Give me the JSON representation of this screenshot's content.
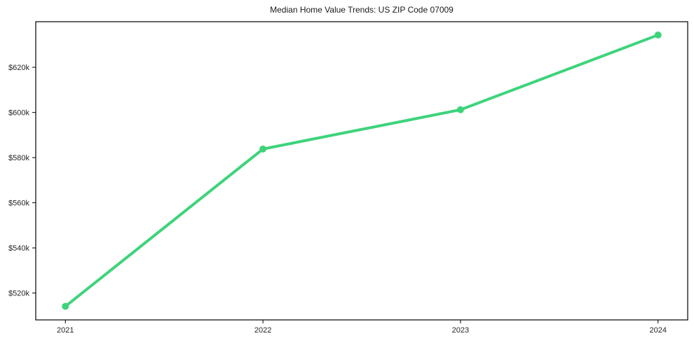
{
  "chart_data": {
    "type": "line",
    "title": "Median Home Value Trends: US ZIP Code 07009",
    "xlabel": "",
    "ylabel": "",
    "x": [
      2021,
      2022,
      2023,
      2024
    ],
    "values": [
      514100,
      583800,
      601200,
      634300
    ],
    "series_name": "Median Home Value",
    "x_ticks": [
      {
        "value": 2021,
        "label": "2021"
      },
      {
        "value": 2022,
        "label": "2022"
      },
      {
        "value": 2023,
        "label": "2023"
      },
      {
        "value": 2024,
        "label": "2024"
      }
    ],
    "y_ticks": [
      {
        "value": 520000,
        "label": "$520k"
      },
      {
        "value": 540000,
        "label": "$540k"
      },
      {
        "value": 560000,
        "label": "$560k"
      },
      {
        "value": 580000,
        "label": "$580k"
      },
      {
        "value": 600000,
        "label": "$600k"
      },
      {
        "value": 620000,
        "label": "$620k"
      }
    ],
    "xlim": [
      2020.85,
      2024.15
    ],
    "ylim": [
      508100,
      640200
    ],
    "grid": false,
    "legend": null,
    "line_color": "#3ed37b",
    "marker": "circle",
    "marker_radius": 5,
    "line_width": 4,
    "axis_color": "#000000",
    "tick_label_color": "#262626",
    "background_color": "#ffffff"
  }
}
